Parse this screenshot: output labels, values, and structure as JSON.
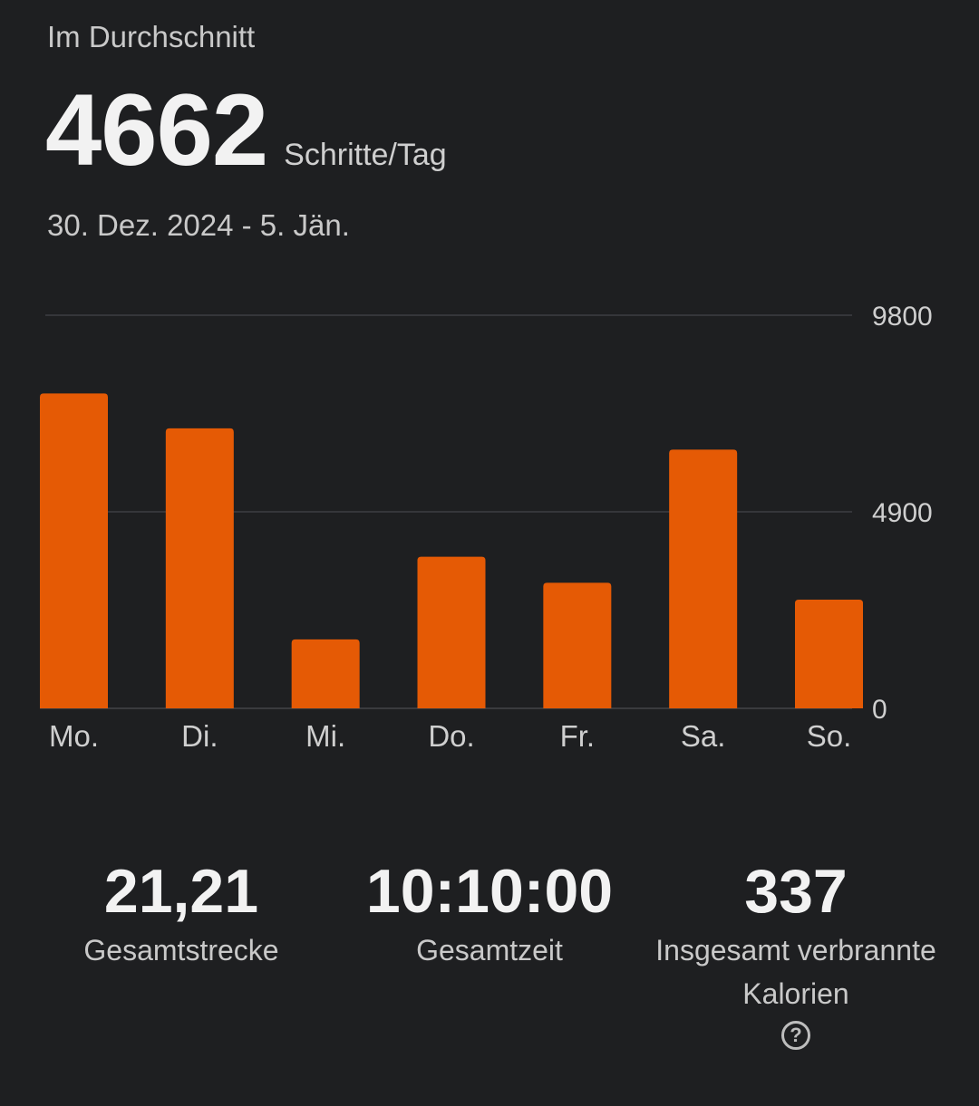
{
  "header": {
    "average_label": "Im Durchschnitt",
    "average_value": "4662",
    "average_unit": "Schritte/Tag",
    "date_range": "30. Dez. 2024 - 5. Jän."
  },
  "chart_data": {
    "type": "bar",
    "categories": [
      "Mo.",
      "Di.",
      "Mi.",
      "Do.",
      "Fr.",
      "Sa.",
      "So."
    ],
    "values": [
      7850,
      6980,
      1720,
      3780,
      3130,
      6450,
      2710
    ],
    "ylim": [
      0,
      9800
    ],
    "yticks": [
      "9800",
      "4900",
      "0"
    ],
    "bar_color": "#e55a05",
    "grid": true
  },
  "stats": [
    {
      "value": "21,21",
      "label": "Gesamtstrecke"
    },
    {
      "value": "10:10:00",
      "label": "Gesamtzeit"
    },
    {
      "value": "337",
      "label": "Insgesamt verbrannte Kalorien"
    }
  ],
  "icons": {
    "help": "help-circle-icon",
    "help_glyph": "?"
  },
  "colors": {
    "background": "#1e1f21",
    "accent": "#e55a05"
  }
}
